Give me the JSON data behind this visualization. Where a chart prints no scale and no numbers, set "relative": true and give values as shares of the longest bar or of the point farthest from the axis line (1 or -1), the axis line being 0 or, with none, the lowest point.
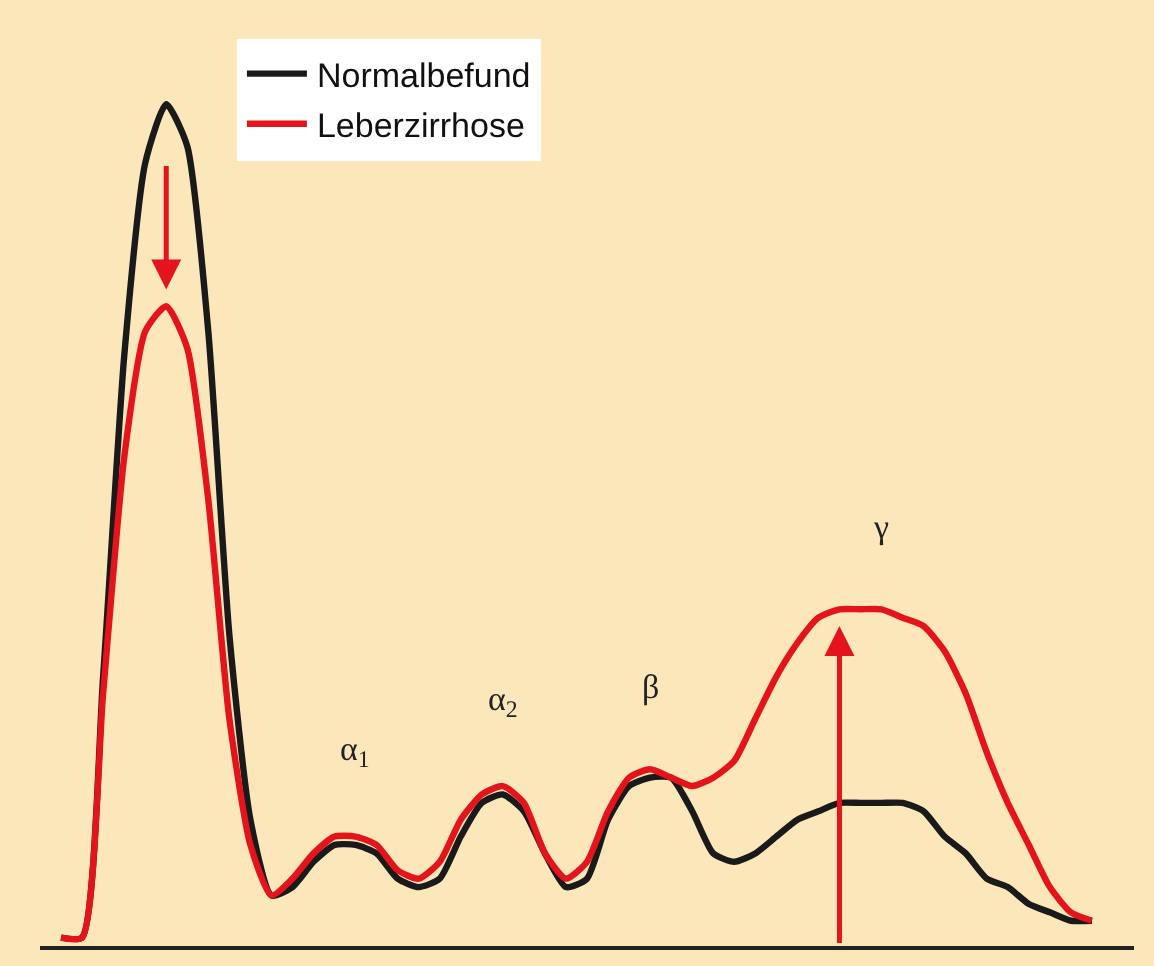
{
  "chart_data": {
    "type": "line",
    "relative": true,
    "legend": "top left",
    "grid": false,
    "marker": "none",
    "line_style": "solid",
    "categories": [
      null,
      null,
      null,
      null,
      null,
      null,
      null,
      null,
      null,
      null,
      null,
      null,
      null,
      null,
      null,
      null,
      null,
      null,
      null,
      null,
      null,
      null,
      null,
      null,
      null,
      null,
      null,
      null,
      null,
      null,
      null,
      null,
      null,
      null,
      null,
      null,
      null,
      null,
      null,
      null,
      null,
      null,
      null,
      null,
      null,
      null,
      null,
      null,
      null,
      null
    ],
    "series": [
      {
        "name": "Normalbefund",
        "color": "#1a1a1a",
        "values": [
          0.01,
          0.01,
          0.32,
          0.7,
          0.93,
          1,
          0.95,
          0.73,
          0.37,
          0.15,
          0.06,
          0.07,
          0.1,
          0.12,
          0.12,
          0.11,
          0.08,
          0.07,
          0.08,
          0.13,
          0.17,
          0.18,
          0.16,
          0.11,
          0.07,
          0.08,
          0.15,
          0.19,
          0.2,
          0.2,
          0.16,
          0.11,
          0.1,
          0.11,
          0.13,
          0.15,
          0.16,
          0.17,
          0.17,
          0.17,
          0.17,
          0.16,
          0.13,
          0.11,
          0.08,
          0.07,
          0.05,
          0.04,
          0.03,
          0.03
        ]
      },
      {
        "name": "Leberzirrhose",
        "color": "#e3141b",
        "values": [
          0.01,
          0.01,
          0.3,
          0.58,
          0.73,
          0.76,
          0.71,
          0.53,
          0.27,
          0.12,
          0.06,
          0.08,
          0.11,
          0.13,
          0.13,
          0.12,
          0.09,
          0.08,
          0.1,
          0.15,
          0.18,
          0.19,
          0.17,
          0.11,
          0.08,
          0.1,
          0.16,
          0.2,
          0.21,
          0.2,
          0.19,
          0.2,
          0.22,
          0.27,
          0.32,
          0.36,
          0.39,
          0.4,
          0.4,
          0.4,
          0.39,
          0.38,
          0.35,
          0.3,
          0.23,
          0.17,
          0.12,
          0.07,
          0.04,
          0.03
        ]
      }
    ],
    "annotations": [
      "α$_{1}$",
      "α$_{2}$",
      "β",
      "γ"
    ]
  }
}
